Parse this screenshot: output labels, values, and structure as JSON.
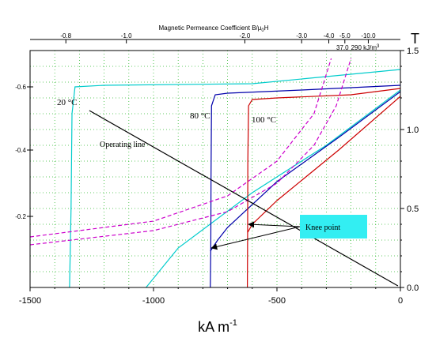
{
  "chart_data": {
    "type": "line",
    "top_axis": {
      "label_main": "Magnetic Permeance Coefficient B/μ",
      "label_sub0": "0",
      "label_tail": "H",
      "ticks": [
        "-0.8",
        "-1.0",
        "-2.0",
        "-3.0",
        "-4.0",
        "-5.0",
        "-10.0"
      ],
      "tick_x": [
        -1355,
        -1110,
        -630,
        -400,
        -290,
        -225,
        -130
      ],
      "energy_labels": [
        "37.0",
        "290 kJ/m"
      ],
      "energy_sup": "3"
    },
    "xaxis": {
      "label": "kA m",
      "label_sup": "-1",
      "ticks": [
        "-1500",
        "-1000",
        "-500",
        "0"
      ],
      "tick_values": [
        -1500,
        -1000,
        -500,
        0
      ],
      "lim": [
        -1500,
        0
      ]
    },
    "y_right": {
      "label": "T",
      "ticks": [
        "0.0",
        "0.5",
        "1.0",
        "1.5"
      ],
      "tick_values": [
        0,
        0.5,
        1.0,
        1.5
      ],
      "lim": [
        0,
        1.5
      ]
    },
    "y_left": {
      "ticks": [
        "-0.2",
        "-0.4",
        "-0.6"
      ],
      "tick_values": [
        0.45,
        0.87,
        1.27
      ]
    },
    "grid": true,
    "series": [
      {
        "color": "#00cccc",
        "style": "solid",
        "points": [
          [
            -1340,
            0
          ],
          [
            -1334,
            0.5
          ],
          [
            -1330,
            1.1
          ],
          [
            -1318,
            1.27
          ],
          [
            -1200,
            1.28
          ],
          [
            -600,
            1.29
          ],
          [
            0,
            1.38
          ]
        ]
      },
      {
        "color": "#00cccc",
        "style": "solid",
        "points": [
          [
            -1030,
            0
          ],
          [
            -900,
            0.25
          ],
          [
            -600,
            0.6
          ],
          [
            -300,
            0.9
          ],
          [
            0,
            1.25
          ]
        ]
      },
      {
        "color": "#0000aa",
        "style": "solid",
        "points": [
          [
            -770,
            0
          ],
          [
            -768,
            0.25
          ],
          [
            -767,
            0.7
          ],
          [
            -765,
            1.15
          ],
          [
            -750,
            1.22
          ],
          [
            -700,
            1.23
          ],
          [
            -400,
            1.25
          ],
          [
            0,
            1.28
          ]
        ]
      },
      {
        "color": "#0000aa",
        "style": "solid",
        "points": [
          [
            -770,
            0.23
          ],
          [
            -740,
            0.3
          ],
          [
            -700,
            0.38
          ],
          [
            -500,
            0.67
          ],
          [
            -250,
            0.95
          ],
          [
            0,
            1.24
          ]
        ]
      },
      {
        "color": "#cc0000",
        "style": "solid",
        "points": [
          [
            -620,
            0
          ],
          [
            -619,
            0.3
          ],
          [
            -618,
            0.8
          ],
          [
            -615,
            1.15
          ],
          [
            -600,
            1.19
          ],
          [
            -500,
            1.2
          ],
          [
            -200,
            1.22
          ],
          [
            0,
            1.26
          ]
        ]
      },
      {
        "color": "#cc0000",
        "style": "solid",
        "points": [
          [
            -618,
            0.35
          ],
          [
            -600,
            0.4
          ],
          [
            -500,
            0.55
          ],
          [
            -250,
            0.87
          ],
          [
            0,
            1.21
          ]
        ]
      },
      {
        "color": "#cc00cc",
        "style": "dashed",
        "points": [
          [
            -1500,
            0.32
          ],
          [
            -1000,
            0.42
          ],
          [
            -700,
            0.58
          ],
          [
            -500,
            0.8
          ],
          [
            -350,
            1.1
          ],
          [
            -280,
            1.45
          ]
        ]
      },
      {
        "color": "#cc00cc",
        "style": "dashed",
        "points": [
          [
            -1500,
            0.27
          ],
          [
            -1000,
            0.36
          ],
          [
            -700,
            0.48
          ],
          [
            -500,
            0.66
          ],
          [
            -350,
            0.9
          ],
          [
            -260,
            1.15
          ],
          [
            -200,
            1.45
          ]
        ]
      },
      {
        "color": "#000000",
        "style": "solid",
        "points": [
          [
            -1260,
            1.12
          ],
          [
            -10,
            0.01
          ]
        ]
      }
    ],
    "annotations": {
      "temp_20": "20 °C",
      "temp_80": "80 °C",
      "temp_100": "100 °C",
      "operating_line": "Operating line",
      "knee_point": "Knee point",
      "knee_targets": [
        [
          -765,
          0.25
        ],
        [
          -615,
          0.4
        ]
      ]
    }
  }
}
